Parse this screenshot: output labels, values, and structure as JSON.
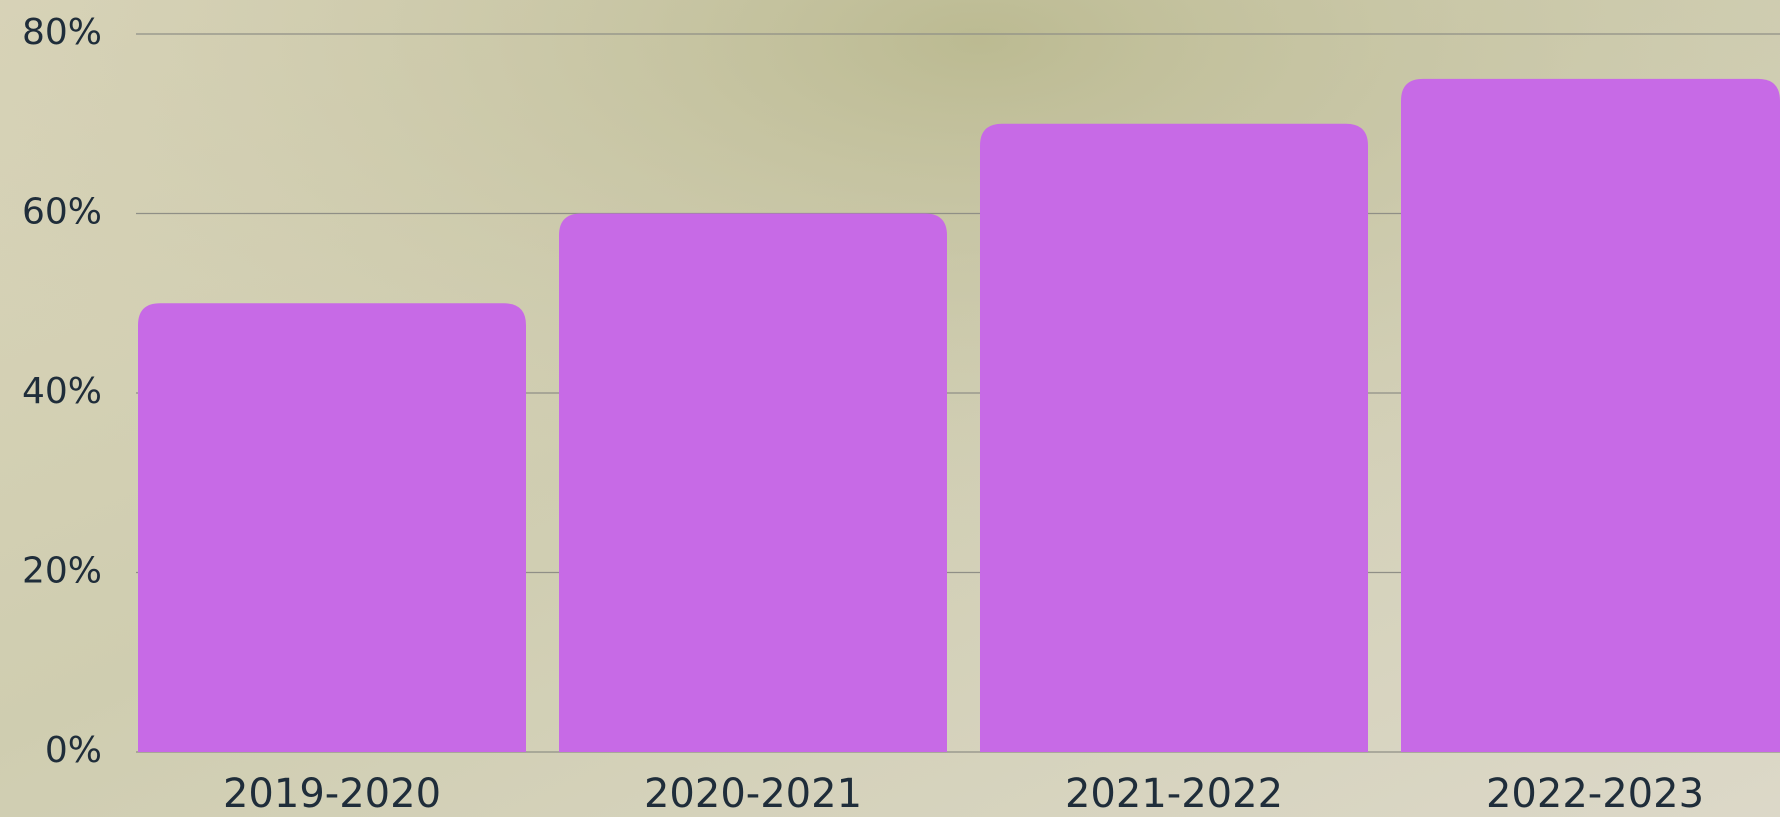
{
  "chart_data": {
    "type": "bar",
    "categories": [
      "2019-2020",
      "2020-2021",
      "2021-2022",
      "2022-2023"
    ],
    "values": [
      50,
      60,
      70,
      75
    ],
    "color": "#c76ae6",
    "ylim": [
      0,
      80
    ],
    "yticks": [
      {
        "value": 0,
        "label": "0%"
      },
      {
        "value": 20,
        "label": "20%"
      },
      {
        "value": 40,
        "label": "40%"
      },
      {
        "value": 60,
        "label": "60%"
      },
      {
        "value": 80,
        "label": "80%"
      }
    ],
    "grid": true
  }
}
